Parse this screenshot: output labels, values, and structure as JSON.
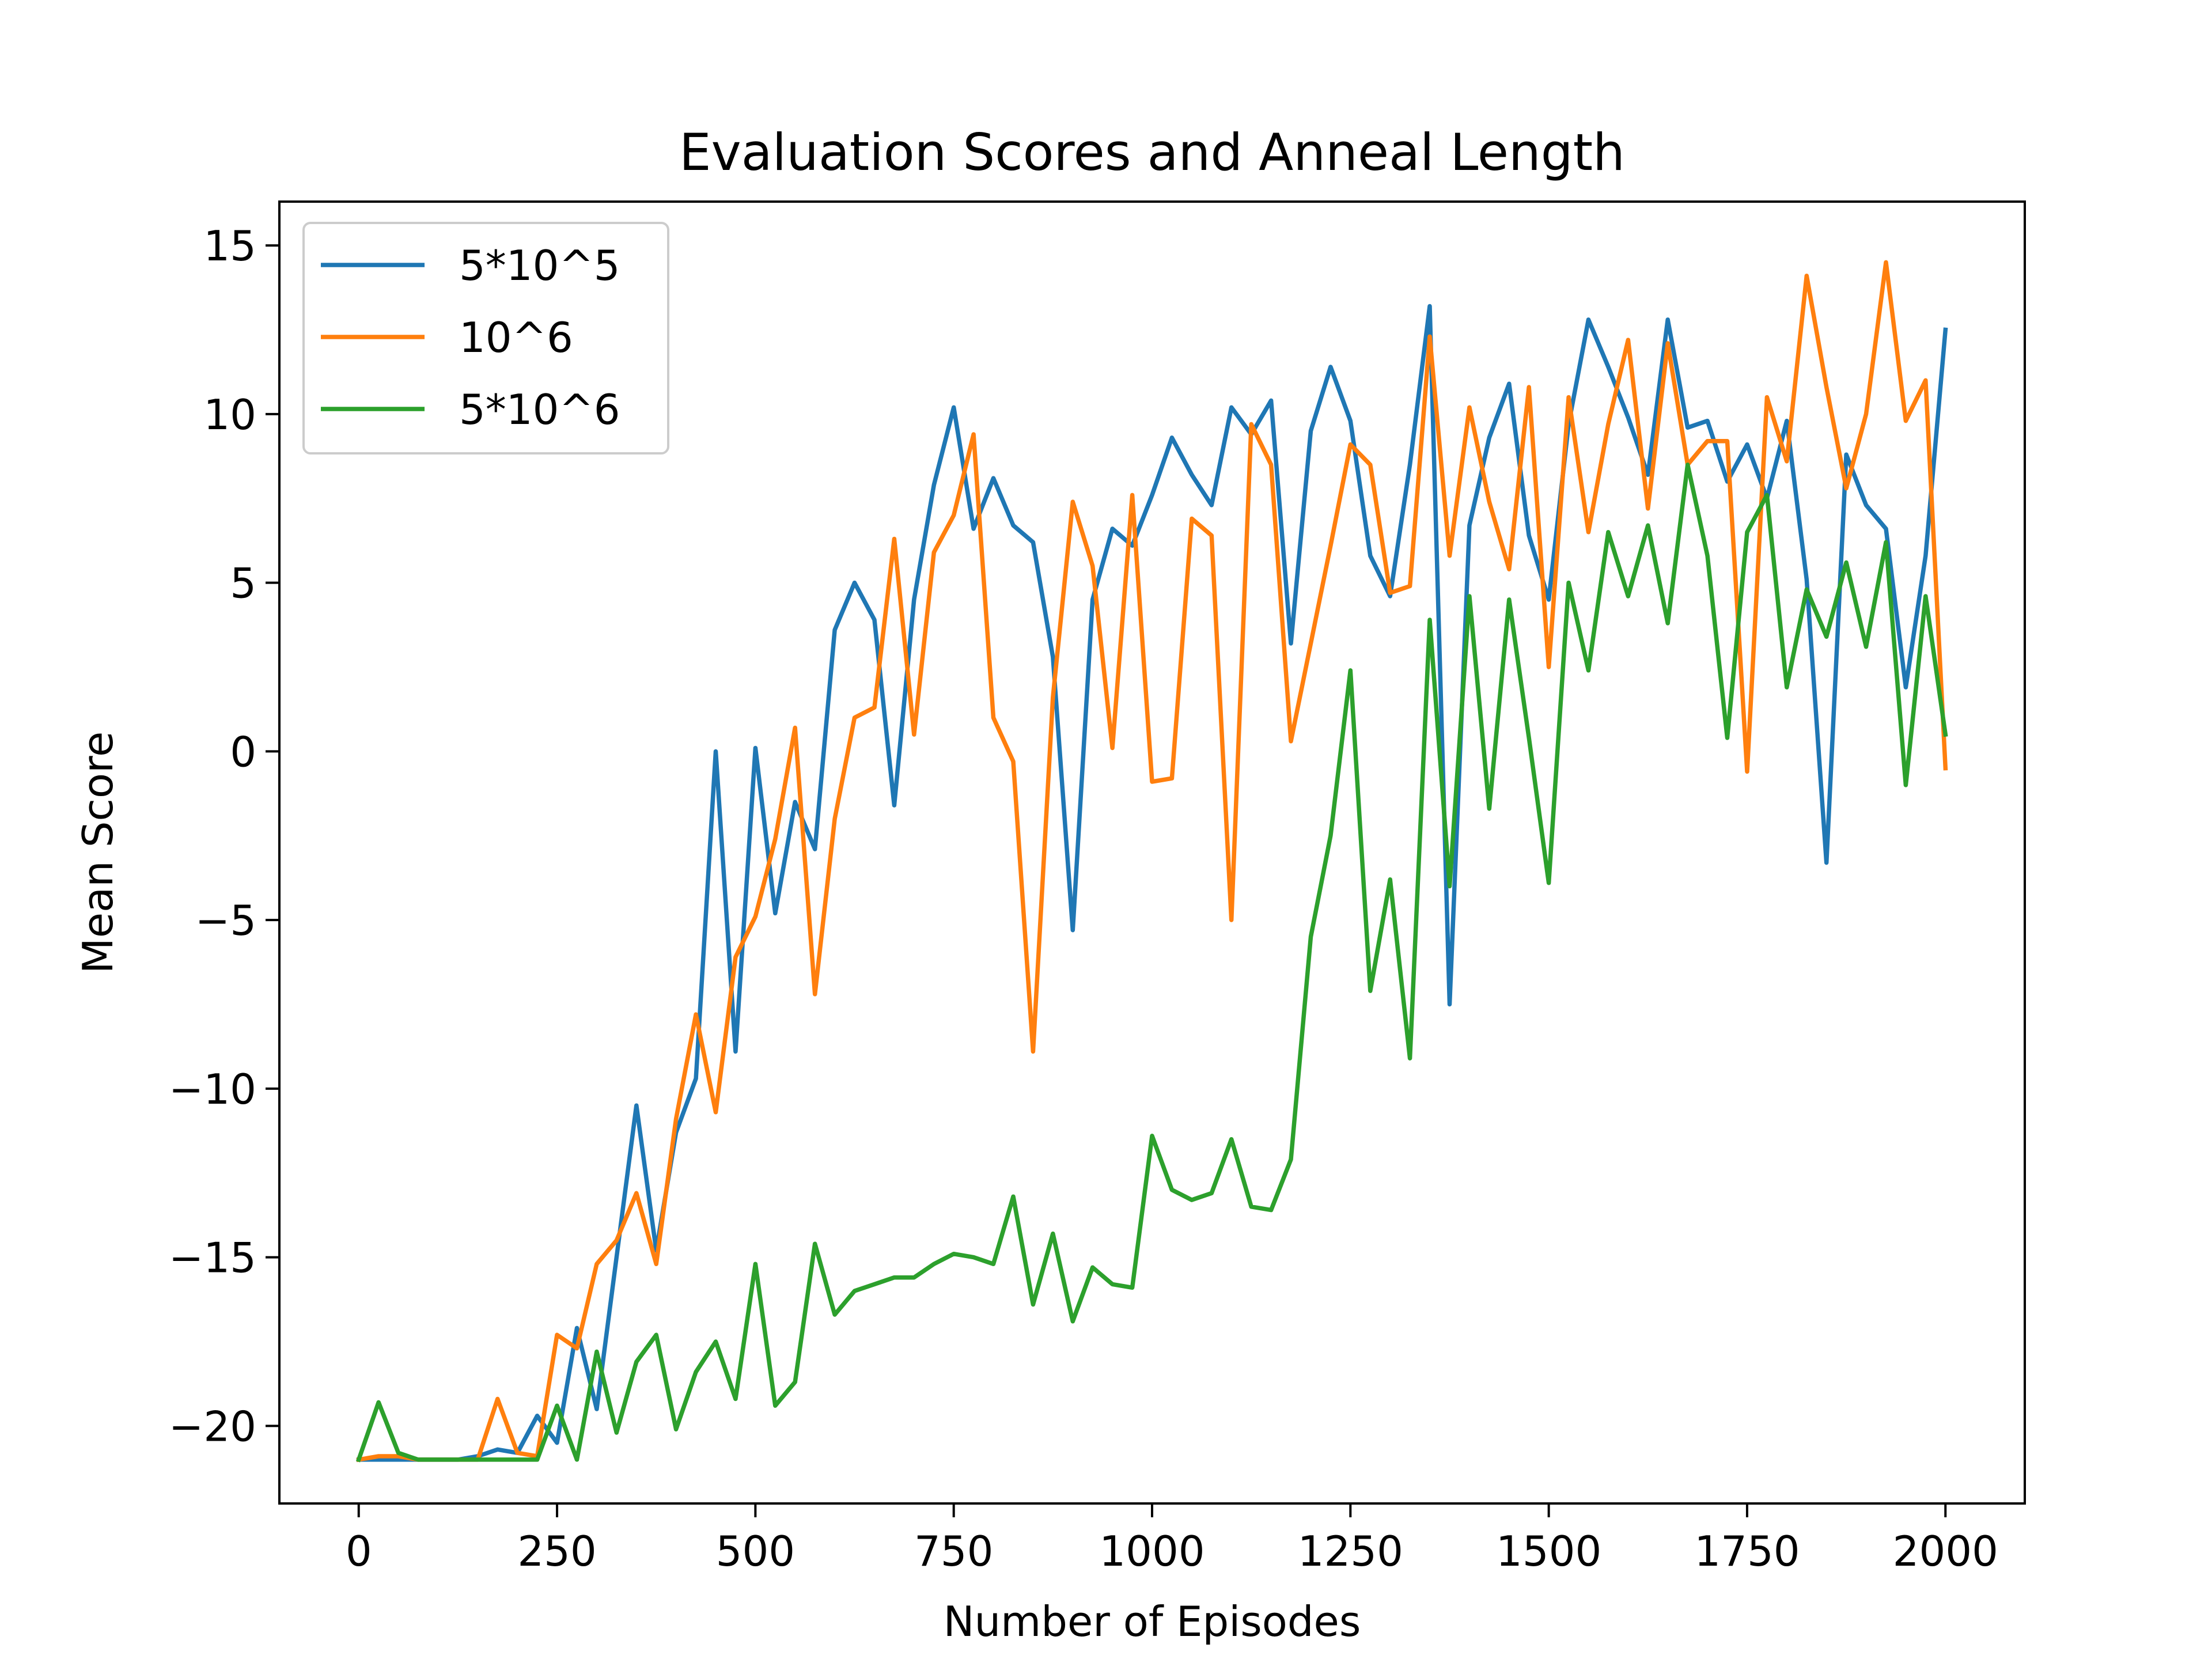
{
  "chart_data": {
    "type": "line",
    "title": "Evaluation Scores and Anneal Length",
    "xlabel": "Number of Episodes",
    "ylabel": "Mean Score",
    "xlim": [
      -100,
      2100
    ],
    "ylim": [
      -22.3,
      16.3
    ],
    "xticks": [
      0,
      250,
      500,
      750,
      1000,
      1250,
      1500,
      1750,
      2000
    ],
    "xtick_labels": [
      "0",
      "250",
      "500",
      "750",
      "1000",
      "1250",
      "1500",
      "1750",
      "2000"
    ],
    "yticks": [
      -20,
      -15,
      -10,
      -5,
      0,
      5,
      10,
      15
    ],
    "ytick_labels": [
      "−20",
      "−15",
      "−10",
      "−5",
      "0",
      "5",
      "10",
      "15"
    ],
    "grid": false,
    "legend_position": "upper-left",
    "x": [
      0,
      25,
      50,
      75,
      100,
      125,
      150,
      175,
      200,
      225,
      250,
      275,
      300,
      325,
      350,
      375,
      400,
      425,
      450,
      475,
      500,
      525,
      550,
      575,
      600,
      625,
      650,
      675,
      700,
      725,
      750,
      775,
      800,
      825,
      850,
      875,
      900,
      925,
      950,
      975,
      1000,
      1025,
      1050,
      1075,
      1100,
      1125,
      1150,
      1175,
      1200,
      1225,
      1250,
      1275,
      1300,
      1325,
      1350,
      1375,
      1400,
      1425,
      1450,
      1475,
      1500,
      1525,
      1550,
      1575,
      1600,
      1625,
      1650,
      1675,
      1700,
      1725,
      1750,
      1775,
      1800,
      1825,
      1850,
      1875,
      1900,
      1925,
      1950,
      1975,
      2000
    ],
    "series": [
      {
        "name": "5*10^5",
        "color": "#1f77b4",
        "values": [
          -21,
          -21,
          -21,
          -21,
          -21,
          -21,
          -20.9,
          -20.7,
          -20.8,
          -19.7,
          -20.5,
          -17.1,
          -19.5,
          -15,
          -10.5,
          -14.8,
          -11.3,
          -9.7,
          0,
          -8.9,
          0.1,
          -4.8,
          -1.5,
          -2.9,
          3.6,
          5,
          3.9,
          -1.6,
          4.5,
          7.9,
          10.2,
          6.6,
          8.1,
          6.7,
          6.2,
          2.8,
          -5.3,
          4.5,
          6.6,
          6.1,
          7.6,
          9.3,
          8.2,
          7.3,
          10.2,
          9.4,
          10.4,
          3.2,
          9.5,
          11.4,
          9.8,
          5.8,
          4.6,
          8.5,
          13.2,
          -7.5,
          6.7,
          9.3,
          10.9,
          6.4,
          4.5,
          9.7,
          12.8,
          11.4,
          9.9,
          8.2,
          12.8,
          9.6,
          9.8,
          8,
          9.1,
          7.5,
          9.8,
          5.1,
          -3.3,
          8.8,
          7.3,
          6.6,
          1.9,
          5.8,
          12.5
        ]
      },
      {
        "name": "10^6",
        "color": "#ff7f0e",
        "values": [
          -21,
          -20.9,
          -20.9,
          -21,
          -21,
          -21,
          -21,
          -19.2,
          -20.8,
          -20.9,
          -17.3,
          -17.7,
          -15.2,
          -14.5,
          -13.1,
          -15.2,
          -10.9,
          -7.8,
          -10.7,
          -6.1,
          -4.9,
          -2.6,
          0.7,
          -7.2,
          -2,
          1,
          1.3,
          6.3,
          0.5,
          5.9,
          7,
          9.4,
          1,
          -0.3,
          -8.9,
          1.6,
          7.4,
          5.5,
          0.1,
          7.6,
          -0.9,
          -0.8,
          6.9,
          6.4,
          -5,
          9.7,
          8.5,
          0.3,
          3.2,
          6.1,
          9.1,
          8.5,
          4.7,
          4.9,
          12.3,
          5.8,
          10.2,
          7.4,
          5.4,
          10.8,
          2.5,
          10.5,
          6.5,
          9.7,
          12.2,
          7.2,
          12.1,
          8.5,
          9.2,
          9.2,
          -0.6,
          10.5,
          8.6,
          14.1,
          10.8,
          7.8,
          10,
          14.5,
          9.8,
          11,
          -0.5
        ]
      },
      {
        "name": "5*10^6",
        "color": "#2ca02c",
        "values": [
          -21,
          -19.3,
          -20.8,
          -21,
          -21,
          -21,
          -21,
          -21,
          -21,
          -21,
          -19.4,
          -21,
          -17.8,
          -20.2,
          -18.1,
          -17.3,
          -20.1,
          -18.4,
          -17.5,
          -19.2,
          -15.2,
          -19.4,
          -18.7,
          -14.6,
          -16.7,
          -16,
          -15.8,
          -15.6,
          -15.6,
          -15.2,
          -14.9,
          -15,
          -15.2,
          -13.2,
          -16.4,
          -14.3,
          -16.9,
          -15.3,
          -15.8,
          -15.9,
          -11.4,
          -13,
          -13.3,
          -13.1,
          -11.5,
          -13.5,
          -13.6,
          -12.1,
          -5.5,
          -2.5,
          2.4,
          -7.1,
          -3.8,
          -9.1,
          3.9,
          -4,
          4.6,
          -1.7,
          4.5,
          0.4,
          -3.9,
          5,
          2.4,
          6.5,
          4.6,
          6.7,
          3.8,
          8.5,
          5.8,
          0.4,
          6.5,
          7.6,
          1.9,
          4.8,
          3.4,
          5.6,
          3.1,
          6.2,
          -1,
          4.6,
          0.5
        ]
      }
    ]
  }
}
